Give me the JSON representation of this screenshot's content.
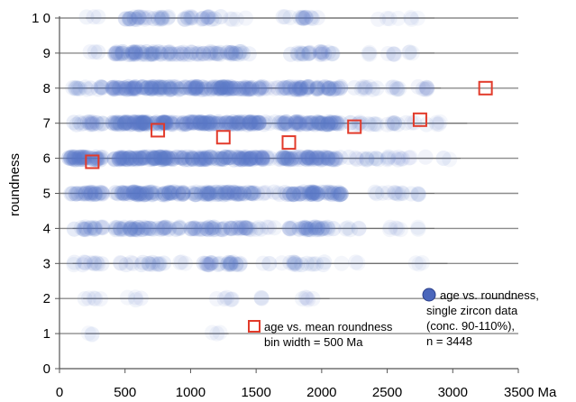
{
  "chart_data": {
    "type": "scatter",
    "title": "",
    "xlabel": "",
    "ylabel": "roundness",
    "x_unit": "Ma",
    "xlim": [
      0,
      3500
    ],
    "ylim": [
      0,
      10
    ],
    "x_ticks": [
      {
        "value": 0,
        "label": "0"
      },
      {
        "value": 500,
        "label": "500"
      },
      {
        "value": 1000,
        "label": "1000"
      },
      {
        "value": 1500,
        "label": "1500"
      },
      {
        "value": 2000,
        "label": "2000"
      },
      {
        "value": 2500,
        "label": "2500"
      },
      {
        "value": 3000,
        "label": "3000"
      },
      {
        "value": 3500,
        "label": "3500 Ma"
      }
    ],
    "y_ticks": [
      {
        "value": 0,
        "label": "0"
      },
      {
        "value": 1,
        "label": "1"
      },
      {
        "value": 2,
        "label": "2"
      },
      {
        "value": 3,
        "label": "3"
      },
      {
        "value": 4,
        "label": "4"
      },
      {
        "value": 5,
        "label": "5"
      },
      {
        "value": 6,
        "label": "6"
      },
      {
        "value": 7,
        "label": "7"
      },
      {
        "value": 8,
        "label": "8"
      },
      {
        "value": 9,
        "label": "9"
      },
      {
        "value": 10,
        "label": "1 0"
      }
    ],
    "grid": "horizontal",
    "legend": {
      "placement": "lower-right",
      "single": {
        "lines": [
          "age vs. roundness,",
          "single zircon data",
          "(conc. 90-110%),",
          "n = 3448"
        ]
      },
      "mean": {
        "lines": [
          "age vs. mean roundness",
          "bin width = 500 Ma"
        ]
      }
    },
    "colors": {
      "single": "#5a78c8",
      "single_legend": "#4a66bb",
      "mean": "#e23a2a",
      "grid": "#8c8c8c"
    },
    "series": [
      {
        "key": "single",
        "marker": "circle",
        "n": 3448,
        "density_by_roundness": [
          {
            "roundness": 1,
            "clusters": [
              [
                200,
                290,
                0.1
              ],
              [
                1150,
                1230,
                0.15
              ]
            ]
          },
          {
            "roundness": 2,
            "clusters": [
              [
                180,
                330,
                0.25
              ],
              [
                500,
                650,
                0.2
              ],
              [
                1180,
                1320,
                0.3
              ],
              [
                1500,
                1600,
                0.15
              ],
              [
                1850,
                2000,
                0.25
              ]
            ]
          },
          {
            "roundness": 3,
            "clusters": [
              [
                100,
                330,
                0.4
              ],
              [
                450,
                800,
                0.4
              ],
              [
                900,
                1000,
                0.2
              ],
              [
                1100,
                1400,
                0.6
              ],
              [
                1550,
                1700,
                0.2
              ],
              [
                1750,
                2050,
                0.4
              ],
              [
                2150,
                2300,
                0.15
              ],
              [
                2700,
                2900,
                0.1
              ]
            ]
          },
          {
            "roundness": 4,
            "clusters": [
              [
                100,
                330,
                0.6
              ],
              [
                420,
                920,
                0.7
              ],
              [
                1000,
                1450,
                0.7
              ],
              [
                1450,
                1650,
                0.3
              ],
              [
                1750,
                2100,
                0.7
              ],
              [
                2150,
                2300,
                0.25
              ],
              [
                2500,
                2800,
                0.2
              ]
            ]
          },
          {
            "roundness": 5,
            "clusters": [
              [
                80,
                330,
                0.8
              ],
              [
                420,
                950,
                0.9
              ],
              [
                1000,
                1500,
                0.85
              ],
              [
                1500,
                1700,
                0.3
              ],
              [
                1700,
                2150,
                0.85
              ],
              [
                2400,
                2800,
                0.3
              ]
            ]
          },
          {
            "roundness": 6,
            "clusters": [
              [
                50,
                330,
                1.0
              ],
              [
                400,
                1000,
                1.0
              ],
              [
                1000,
                1550,
                1.0
              ],
              [
                1550,
                1700,
                0.4
              ],
              [
                1700,
                2150,
                0.9
              ],
              [
                2200,
                2450,
                0.35
              ],
              [
                2500,
                2800,
                0.3
              ],
              [
                2900,
                3000,
                0.1
              ]
            ]
          },
          {
            "roundness": 7,
            "clusters": [
              [
                100,
                330,
                0.6
              ],
              [
                400,
                1000,
                1.0
              ],
              [
                1000,
                1550,
                1.0
              ],
              [
                1550,
                1700,
                0.4
              ],
              [
                1700,
                2150,
                0.9
              ],
              [
                2200,
                2450,
                0.35
              ],
              [
                2500,
                2800,
                0.3
              ],
              [
                2850,
                3050,
                0.15
              ]
            ]
          },
          {
            "roundness": 8,
            "clusters": [
              [
                100,
                330,
                0.5
              ],
              [
                400,
                1000,
                0.9
              ],
              [
                1000,
                1550,
                0.95
              ],
              [
                1550,
                1700,
                0.35
              ],
              [
                1700,
                2150,
                0.8
              ],
              [
                2200,
                2450,
                0.3
              ],
              [
                2500,
                2850,
                0.3
              ]
            ]
          },
          {
            "roundness": 9,
            "clusters": [
              [
                220,
                300,
                0.3
              ],
              [
                420,
                1000,
                0.7
              ],
              [
                1000,
                1450,
                0.6
              ],
              [
                1750,
                2100,
                0.5
              ],
              [
                2350,
                2450,
                0.1
              ],
              [
                2500,
                2800,
                0.2
              ]
            ]
          },
          {
            "roundness": 10,
            "clusters": [
              [
                200,
                300,
                0.2
              ],
              [
                500,
                850,
                0.6
              ],
              [
                950,
                1250,
                0.5
              ],
              [
                1300,
                1450,
                0.2
              ],
              [
                1700,
                2000,
                0.4
              ],
              [
                2400,
                2800,
                0.15
              ]
            ]
          }
        ]
      },
      {
        "key": "mean",
        "marker": "square",
        "points": [
          {
            "x": 250,
            "y": 5.9
          },
          {
            "x": 750,
            "y": 6.8
          },
          {
            "x": 1250,
            "y": 6.6
          },
          {
            "x": 1750,
            "y": 6.45
          },
          {
            "x": 2250,
            "y": 6.9
          },
          {
            "x": 2750,
            "y": 7.1
          },
          {
            "x": 3250,
            "y": 8.0
          }
        ]
      }
    ]
  }
}
